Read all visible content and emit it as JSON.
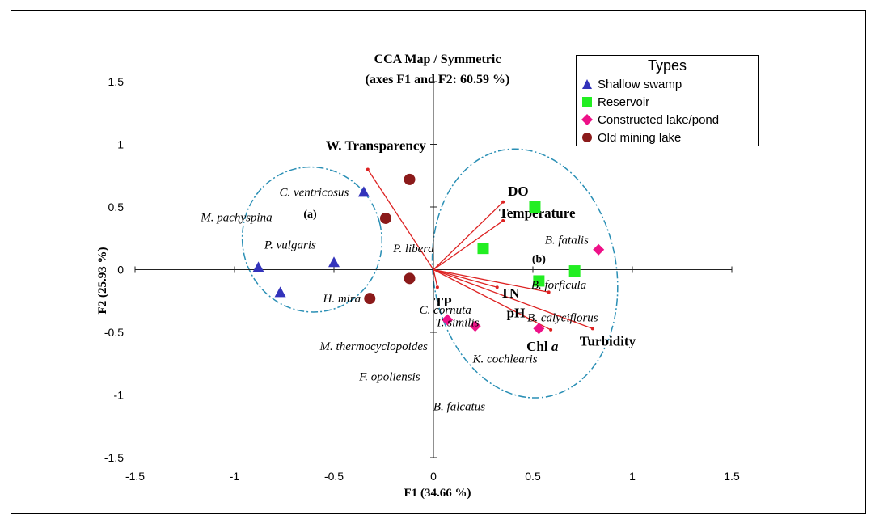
{
  "chart_data": {
    "type": "scatter",
    "title": "CCA Map / Symmetric",
    "subtitle": "(axes F1 and F2: 60.59 %)",
    "xlabel": "F1 (34.66 %)",
    "ylabel": "F2 (25.93 %)",
    "xlim": [
      -1.5,
      1.5
    ],
    "ylim": [
      -1.5,
      1.5
    ],
    "x_ticks": [
      -1.5,
      -1,
      -0.5,
      0,
      0.5,
      1,
      1.5
    ],
    "y_ticks": [
      -1.5,
      -1,
      -0.5,
      0,
      0.5,
      1,
      1.5
    ],
    "x_tick_labels": [
      "-1.5",
      "-1",
      "-0.5",
      "0",
      "0.5",
      "1",
      "1.5"
    ],
    "y_tick_labels": [
      "-1.5",
      "-1",
      "-0.5",
      "0",
      "0.5",
      "1",
      "1.5"
    ],
    "grid": false,
    "legend": {
      "title": "Types",
      "placement": "top-right",
      "entries": [
        "Shallow swamp",
        "Reservoir",
        "Constructed lake/pond",
        "Old mining lake"
      ]
    },
    "series": [
      {
        "name": "Shallow swamp",
        "marker": "triangle",
        "color": "#3333bb",
        "points": [
          [
            -0.35,
            0.62
          ],
          [
            -0.5,
            0.06
          ],
          [
            -0.88,
            0.02
          ],
          [
            -0.77,
            -0.18
          ]
        ]
      },
      {
        "name": "Reservoir",
        "marker": "square",
        "color": "#22ee22",
        "points": [
          [
            0.51,
            0.5
          ],
          [
            0.25,
            0.17
          ],
          [
            0.71,
            -0.01
          ],
          [
            0.53,
            -0.09
          ]
        ]
      },
      {
        "name": "Constructed lake/pond",
        "marker": "diamond",
        "color": "#ee1188",
        "points": [
          [
            0.83,
            0.16
          ],
          [
            0.07,
            -0.4
          ],
          [
            0.21,
            -0.45
          ],
          [
            0.53,
            -0.47
          ]
        ]
      },
      {
        "name": "Old mining lake",
        "marker": "circle",
        "color": "#8b1a1a",
        "points": [
          [
            -0.12,
            0.72
          ],
          [
            -0.24,
            0.41
          ],
          [
            -0.12,
            -0.07
          ],
          [
            -0.32,
            -0.23
          ]
        ]
      }
    ],
    "vectors_color": "#dd2222",
    "vectors": [
      {
        "label": "W. Transparency",
        "x": -0.33,
        "y": 0.8
      },
      {
        "label": "DO",
        "x": 0.35,
        "y": 0.54
      },
      {
        "label": "Temperature",
        "x": 0.35,
        "y": 0.39
      },
      {
        "label": "TP",
        "x": 0.02,
        "y": -0.14
      },
      {
        "label": "TN",
        "x": 0.32,
        "y": -0.14
      },
      {
        "label": "pH",
        "x": 0.58,
        "y": -0.18
      },
      {
        "label": "Chl a",
        "x": 0.59,
        "y": -0.48
      },
      {
        "label": "Turbidity",
        "x": 0.8,
        "y": -0.47
      }
    ],
    "species": [
      {
        "label": "C. ventricosus",
        "x": -0.6,
        "y": 0.62
      },
      {
        "label": "M. pachyspina",
        "x": -0.99,
        "y": 0.42
      },
      {
        "label": "P. vulgaris",
        "x": -0.72,
        "y": 0.2
      },
      {
        "label": "H. mira",
        "x": -0.46,
        "y": -0.23
      },
      {
        "label": "P. libera",
        "x": -0.1,
        "y": 0.17
      },
      {
        "label": "B. fatalis",
        "x": 0.67,
        "y": 0.24
      },
      {
        "label": "B. forficula",
        "x": 0.63,
        "y": -0.12
      },
      {
        "label": "B. calyciflorus",
        "x": 0.65,
        "y": -0.38
      },
      {
        "label": "C. cornuta",
        "x": 0.06,
        "y": -0.32
      },
      {
        "label": "T. similis",
        "x": 0.12,
        "y": -0.42
      },
      {
        "label": "M. thermocyclopoides",
        "x": -0.3,
        "y": -0.61
      },
      {
        "label": "K. cochlearis",
        "x": 0.36,
        "y": -0.71
      },
      {
        "label": "F. opoliensis",
        "x": -0.22,
        "y": -0.85
      },
      {
        "label": "B. falcatus",
        "x": 0.13,
        "y": -1.09
      }
    ],
    "group_labels": [
      {
        "label": "(a)",
        "x": -0.62,
        "y": 0.45
      },
      {
        "label": "(b)",
        "x": 0.53,
        "y": 0.09
      }
    ],
    "ellipses": [
      {
        "group": "(a)",
        "cx": -0.61,
        "cy": 0.24,
        "rx": 0.35,
        "ry": 0.58,
        "rotation": -14
      },
      {
        "group": "(b)",
        "cx": 0.46,
        "cy": -0.03,
        "rx": 0.46,
        "ry": 1.0,
        "rotation": -10
      }
    ]
  }
}
